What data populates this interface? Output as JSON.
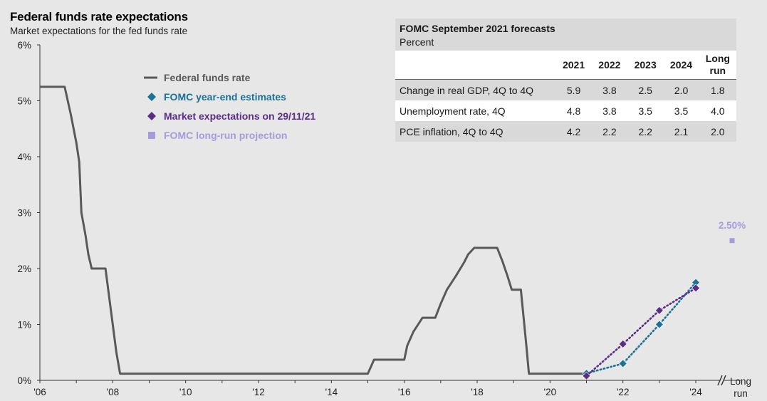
{
  "title": "Federal funds rate expectations",
  "subtitle": "Market expectations for the fed funds rate",
  "colors": {
    "fed_funds": "#595959",
    "fomc": "#1b7296",
    "market": "#5b2d86",
    "longrun": "#a79be0"
  },
  "legend": [
    {
      "label": "Federal funds rate",
      "icon": "line-icon",
      "color": "#595959"
    },
    {
      "label": "FOMC year-end estimates",
      "icon": "diamond-icon",
      "color": "#1b7296"
    },
    {
      "label": "Market expectations on 29/11/21",
      "icon": "diamond-icon",
      "color": "#5b2d86"
    },
    {
      "label": "FOMC long-run projection",
      "icon": "square-icon",
      "color": "#a79be0"
    }
  ],
  "table": {
    "title": "FOMC September 2021 forecasts",
    "subtitle": "Percent",
    "columns": [
      "2021",
      "2022",
      "2023",
      "2024",
      "Long run"
    ],
    "rows": [
      {
        "label": "Change in real GDP, 4Q to 4Q",
        "values": [
          "5.9",
          "3.8",
          "2.5",
          "2.0",
          "1.8"
        ]
      },
      {
        "label": "Unemployment rate, 4Q",
        "values": [
          "4.8",
          "3.8",
          "3.5",
          "3.5",
          "4.0"
        ]
      },
      {
        "label": "PCE inflation, 4Q to 4Q",
        "values": [
          "4.2",
          "2.2",
          "2.2",
          "2.1",
          "2.0"
        ]
      }
    ]
  },
  "chart_data": {
    "type": "line",
    "ylim": [
      0,
      6
    ],
    "xlim": [
      2006,
      2024.2
    ],
    "y_ticks": [
      {
        "value": 0,
        "label": "0%"
      },
      {
        "value": 1,
        "label": "1%"
      },
      {
        "value": 2,
        "label": "2%"
      },
      {
        "value": 3,
        "label": "3%"
      },
      {
        "value": 4,
        "label": "4%"
      },
      {
        "value": 5,
        "label": "5%"
      },
      {
        "value": 6,
        "label": "6%"
      }
    ],
    "x_ticks": [
      {
        "value": 2006,
        "label": "'06"
      },
      {
        "value": 2008,
        "label": "'08"
      },
      {
        "value": 2010,
        "label": "'10"
      },
      {
        "value": 2012,
        "label": "'12"
      },
      {
        "value": 2014,
        "label": "'14"
      },
      {
        "value": 2016,
        "label": "'16"
      },
      {
        "value": 2018,
        "label": "'18"
      },
      {
        "value": 2020,
        "label": "'20"
      },
      {
        "value": 2022,
        "label": "'22"
      },
      {
        "value": 2024,
        "label": "'24"
      }
    ],
    "long_run_tick": "Long run",
    "series": [
      {
        "name": "Federal funds rate",
        "style": "line",
        "points": [
          [
            2006.0,
            5.25
          ],
          [
            2006.68,
            5.25
          ],
          [
            2006.85,
            4.75
          ],
          [
            2007.0,
            4.25
          ],
          [
            2007.08,
            3.9
          ],
          [
            2007.14,
            3.0
          ],
          [
            2007.25,
            2.6
          ],
          [
            2007.33,
            2.25
          ],
          [
            2007.42,
            2.0
          ],
          [
            2007.8,
            2.0
          ],
          [
            2007.9,
            1.5
          ],
          [
            2008.0,
            1.0
          ],
          [
            2008.1,
            0.5
          ],
          [
            2008.2,
            0.12
          ],
          [
            2015.0,
            0.12
          ],
          [
            2015.17,
            0.37
          ],
          [
            2016.0,
            0.37
          ],
          [
            2016.08,
            0.62
          ],
          [
            2016.25,
            0.87
          ],
          [
            2016.5,
            1.12
          ],
          [
            2016.85,
            1.12
          ],
          [
            2017.0,
            1.37
          ],
          [
            2017.17,
            1.62
          ],
          [
            2017.42,
            1.87
          ],
          [
            2017.65,
            2.12
          ],
          [
            2017.75,
            2.25
          ],
          [
            2017.92,
            2.37
          ],
          [
            2018.55,
            2.37
          ],
          [
            2018.7,
            2.12
          ],
          [
            2018.83,
            1.87
          ],
          [
            2018.95,
            1.62
          ],
          [
            2019.2,
            1.62
          ],
          [
            2019.35,
            0.62
          ],
          [
            2019.42,
            0.12
          ],
          [
            2020.93,
            0.12
          ]
        ]
      },
      {
        "name": "FOMC year-end estimates",
        "style": "dotted-diamond",
        "points": [
          [
            2021.0,
            0.125
          ],
          [
            2022.0,
            0.3
          ],
          [
            2023.0,
            1.0
          ],
          [
            2024.0,
            1.75
          ]
        ]
      },
      {
        "name": "Market expectations on 29/11/21",
        "style": "dotted-diamond",
        "points": [
          [
            2021.0,
            0.08
          ],
          [
            2022.0,
            0.65
          ],
          [
            2023.0,
            1.25
          ],
          [
            2024.0,
            1.65
          ]
        ]
      }
    ],
    "long_run": {
      "name": "FOMC long-run projection",
      "value": 2.5,
      "label": "2.50%"
    }
  }
}
